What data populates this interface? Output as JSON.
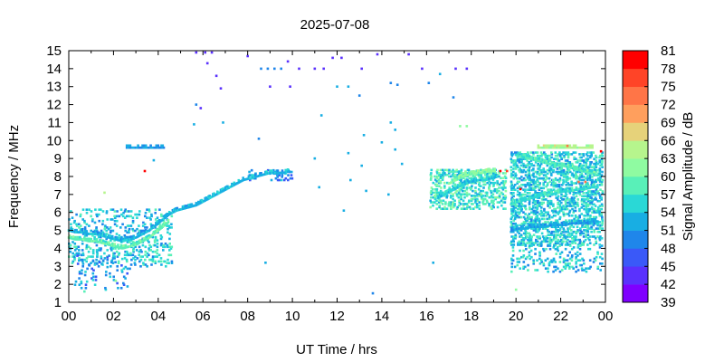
{
  "chart_data": {
    "type": "heatmap",
    "title": "2025-07-08",
    "xlabel": "UT Time / hrs",
    "ylabel": "Frequency / MHz",
    "xlim": [
      0,
      24
    ],
    "ylim": [
      1,
      15
    ],
    "xticks": [
      "00",
      "02",
      "04",
      "06",
      "08",
      "10",
      "12",
      "14",
      "16",
      "18",
      "20",
      "22",
      "00"
    ],
    "yticks": [
      "1",
      "2",
      "3",
      "4",
      "5",
      "6",
      "7",
      "8",
      "9",
      "10",
      "11",
      "12",
      "13",
      "14",
      "15"
    ],
    "grid": false,
    "colorbar": {
      "label": "Signal Amplitude / dB",
      "min": 39,
      "max": 81,
      "ticks": [
        "39",
        "42",
        "45",
        "48",
        "51",
        "54",
        "57",
        "60",
        "63",
        "66",
        "69",
        "72",
        "75",
        "78",
        "81"
      ],
      "colors": [
        "#7f00ff",
        "#5a31fd",
        "#3a59f8",
        "#1f86ea",
        "#18aee3",
        "#2ad8d6",
        "#59f0b8",
        "#8ffba1",
        "#b6f58d",
        "#e6d27a",
        "#ff9f5d",
        "#ff7547",
        "#ff4427",
        "#ff0000"
      ]
    },
    "traces": [
      {
        "x": [
          0.0,
          0.3,
          0.6,
          0.9,
          1.2,
          1.5,
          1.8,
          2.1,
          2.4,
          2.7,
          3.0,
          3.3,
          3.6,
          3.9,
          4.2,
          4.5,
          4.8,
          5.1,
          5.4,
          5.7,
          6.0,
          6.3,
          6.6,
          6.9,
          7.2,
          7.5,
          7.8,
          8.1,
          8.4,
          8.7,
          9.0,
          9.3,
          9.6,
          9.9
        ],
        "y": [
          5.0,
          4.9,
          4.9,
          4.8,
          4.8,
          4.7,
          4.6,
          4.5,
          4.4,
          4.5,
          4.6,
          4.8,
          5.0,
          5.3,
          5.6,
          5.9,
          6.1,
          6.2,
          6.3,
          6.4,
          6.6,
          6.8,
          7.0,
          7.2,
          7.4,
          7.6,
          7.8,
          7.9,
          8.0,
          8.1,
          8.2,
          8.2,
          8.2,
          8.3
        ],
        "amp": 53
      },
      {
        "x": [
          0.0,
          0.3,
          0.6,
          0.9,
          1.2,
          1.5,
          1.8,
          2.1,
          2.4,
          2.7,
          3.0,
          3.3,
          3.6,
          3.9,
          4.2,
          4.5
        ],
        "y": [
          4.6,
          4.5,
          4.5,
          4.4,
          4.4,
          4.3,
          4.2,
          4.1,
          4.0,
          4.1,
          4.2,
          4.4,
          4.6,
          4.9,
          5.2,
          5.5
        ],
        "amp": 59
      },
      {
        "x": [
          2.6,
          2.9,
          3.2,
          3.5,
          4.0,
          4.3
        ],
        "y": [
          9.6,
          9.6,
          9.6,
          9.6,
          9.6,
          9.6
        ],
        "amp": 51
      },
      {
        "x": [
          16.5,
          16.8,
          17.1,
          17.4,
          17.7,
          18.0,
          18.3,
          18.6,
          18.9,
          19.2
        ],
        "y": [
          6.8,
          7.0,
          7.2,
          7.4,
          7.6,
          7.7,
          7.8,
          7.8,
          7.9,
          8.0
        ],
        "amp": 55
      },
      {
        "x": [
          17.0,
          17.3,
          17.6,
          17.9,
          18.2,
          18.5,
          18.8,
          19.1
        ],
        "y": [
          7.6,
          7.8,
          8.0,
          8.1,
          8.2,
          8.2,
          8.3,
          8.3
        ],
        "amp": 61
      },
      {
        "x": [
          19.8,
          20.1,
          20.4,
          20.7,
          21.0,
          21.3,
          21.6,
          21.9,
          22.2,
          22.5,
          22.8,
          23.1,
          23.4,
          23.7
        ],
        "y": [
          6.5,
          6.6,
          6.7,
          6.8,
          6.9,
          7.0,
          7.0,
          7.1,
          7.2,
          7.2,
          7.3,
          7.3,
          7.4,
          7.4
        ],
        "amp": 56
      },
      {
        "x": [
          19.8,
          20.1,
          20.4,
          20.7,
          21.0,
          21.3,
          21.6,
          21.9,
          22.2,
          22.5,
          22.8,
          23.1,
          23.4,
          23.7
        ],
        "y": [
          5.0,
          5.1,
          5.1,
          5.2,
          5.2,
          5.2,
          5.3,
          5.3,
          5.3,
          5.4,
          5.4,
          5.4,
          5.5,
          5.5
        ],
        "amp": 52
      },
      {
        "x": [
          20.0,
          20.3,
          20.6,
          20.9,
          21.2,
          21.5,
          21.8,
          22.1,
          22.4,
          22.7,
          23.0,
          23.3,
          23.6
        ],
        "y": [
          9.2,
          9.1,
          9.0,
          8.9,
          8.8,
          8.7,
          8.6,
          8.6,
          8.5,
          8.4,
          8.3,
          8.2,
          8.1
        ],
        "amp": 58
      },
      {
        "x": [
          21.0,
          21.5,
          22.0,
          22.5,
          23.0,
          23.5
        ],
        "y": [
          9.6,
          9.6,
          9.6,
          9.6,
          9.6,
          9.6
        ],
        "amp": 64
      }
    ],
    "points": [
      {
        "x": 5.7,
        "y": 14.9,
        "amp": 42
      },
      {
        "x": 6.1,
        "y": 14.9,
        "amp": 42
      },
      {
        "x": 6.4,
        "y": 14.9,
        "amp": 42
      },
      {
        "x": 8.0,
        "y": 14.7,
        "amp": 42
      },
      {
        "x": 9.8,
        "y": 14.4,
        "amp": 42
      },
      {
        "x": 10.3,
        "y": 14.0,
        "amp": 42
      },
      {
        "x": 11.0,
        "y": 14.0,
        "amp": 42
      },
      {
        "x": 11.4,
        "y": 14.0,
        "amp": 42
      },
      {
        "x": 11.8,
        "y": 14.6,
        "amp": 42
      },
      {
        "x": 12.2,
        "y": 14.6,
        "amp": 42
      },
      {
        "x": 13.1,
        "y": 14.0,
        "amp": 42
      },
      {
        "x": 13.8,
        "y": 14.8,
        "amp": 42
      },
      {
        "x": 15.2,
        "y": 14.8,
        "amp": 42
      },
      {
        "x": 15.8,
        "y": 14.0,
        "amp": 42
      },
      {
        "x": 17.3,
        "y": 14.0,
        "amp": 42
      },
      {
        "x": 17.8,
        "y": 14.0,
        "amp": 42
      },
      {
        "x": 6.8,
        "y": 12.9,
        "amp": 42
      },
      {
        "x": 9.0,
        "y": 13.0,
        "amp": 42
      },
      {
        "x": 9.9,
        "y": 13.0,
        "amp": 42
      },
      {
        "x": 6.2,
        "y": 14.3,
        "amp": 42
      },
      {
        "x": 6.6,
        "y": 13.6,
        "amp": 42
      },
      {
        "x": 8.6,
        "y": 14.0,
        "amp": 48
      },
      {
        "x": 8.9,
        "y": 14.0,
        "amp": 48
      },
      {
        "x": 9.2,
        "y": 14.0,
        "amp": 48
      },
      {
        "x": 9.5,
        "y": 14.0,
        "amp": 48
      },
      {
        "x": 12.0,
        "y": 13.0,
        "amp": 51
      },
      {
        "x": 12.5,
        "y": 13.0,
        "amp": 51
      },
      {
        "x": 13.0,
        "y": 12.5,
        "amp": 48
      },
      {
        "x": 14.4,
        "y": 13.2,
        "amp": 48
      },
      {
        "x": 14.7,
        "y": 13.1,
        "amp": 48
      },
      {
        "x": 16.1,
        "y": 13.2,
        "amp": 48
      },
      {
        "x": 16.6,
        "y": 13.7,
        "amp": 51
      },
      {
        "x": 17.2,
        "y": 12.4,
        "amp": 48
      },
      {
        "x": 5.7,
        "y": 12.0,
        "amp": 48
      },
      {
        "x": 5.9,
        "y": 11.8,
        "amp": 42
      },
      {
        "x": 5.6,
        "y": 10.9,
        "amp": 51
      },
      {
        "x": 6.9,
        "y": 11.0,
        "amp": 51
      },
      {
        "x": 11.3,
        "y": 11.4,
        "amp": 51
      },
      {
        "x": 14.4,
        "y": 11.0,
        "amp": 51
      },
      {
        "x": 14.6,
        "y": 10.6,
        "amp": 51
      },
      {
        "x": 13.2,
        "y": 10.3,
        "amp": 51
      },
      {
        "x": 14.0,
        "y": 9.9,
        "amp": 51
      },
      {
        "x": 14.6,
        "y": 9.5,
        "amp": 51
      },
      {
        "x": 8.5,
        "y": 10.1,
        "amp": 48
      },
      {
        "x": 11.0,
        "y": 9.0,
        "amp": 51
      },
      {
        "x": 12.5,
        "y": 9.3,
        "amp": 51
      },
      {
        "x": 13.1,
        "y": 8.6,
        "amp": 51
      },
      {
        "x": 14.9,
        "y": 8.7,
        "amp": 51
      },
      {
        "x": 17.5,
        "y": 10.8,
        "amp": 60
      },
      {
        "x": 17.8,
        "y": 10.8,
        "amp": 60
      },
      {
        "x": 3.4,
        "y": 8.3,
        "amp": 78
      },
      {
        "x": 3.8,
        "y": 8.9,
        "amp": 51
      },
      {
        "x": 19.3,
        "y": 8.3,
        "amp": 78
      },
      {
        "x": 19.6,
        "y": 8.3,
        "amp": 75
      },
      {
        "x": 20.2,
        "y": 7.3,
        "amp": 78
      },
      {
        "x": 22.3,
        "y": 9.7,
        "amp": 72
      },
      {
        "x": 22.8,
        "y": 7.7,
        "amp": 72
      },
      {
        "x": 23.1,
        "y": 7.7,
        "amp": 72
      },
      {
        "x": 23.8,
        "y": 9.4,
        "amp": 78
      },
      {
        "x": 20.0,
        "y": 1.7,
        "amp": 60
      },
      {
        "x": 0.7,
        "y": 1.6,
        "amp": 57
      },
      {
        "x": 13.6,
        "y": 1.5,
        "amp": 48
      },
      {
        "x": 8.8,
        "y": 3.2,
        "amp": 51
      },
      {
        "x": 16.3,
        "y": 3.2,
        "amp": 51
      },
      {
        "x": 2.1,
        "y": 2.2,
        "amp": 60
      },
      {
        "x": 1.6,
        "y": 7.1,
        "amp": 63
      },
      {
        "x": 12.3,
        "y": 6.1,
        "amp": 51
      },
      {
        "x": 11.2,
        "y": 7.4,
        "amp": 51
      },
      {
        "x": 12.6,
        "y": 7.8,
        "amp": 51
      },
      {
        "x": 13.3,
        "y": 7.2,
        "amp": 51
      },
      {
        "x": 14.3,
        "y": 7.0,
        "amp": 51
      }
    ],
    "bands": [
      {
        "x0": 0.0,
        "x1": 4.6,
        "y0": 3.0,
        "y1": 6.2,
        "amp": 54,
        "density": 0.25
      },
      {
        "x0": 0.3,
        "x1": 2.8,
        "y0": 1.7,
        "y1": 3.6,
        "amp": 51,
        "density": 0.12
      },
      {
        "x0": 16.2,
        "x1": 19.6,
        "y0": 6.2,
        "y1": 8.4,
        "amp": 57,
        "density": 0.45
      },
      {
        "x0": 19.8,
        "x1": 23.9,
        "y0": 4.2,
        "y1": 9.4,
        "amp": 55,
        "density": 0.5
      },
      {
        "x0": 19.8,
        "x1": 23.9,
        "y0": 2.7,
        "y1": 4.2,
        "amp": 54,
        "density": 0.2
      },
      {
        "x0": 8.0,
        "x1": 10.0,
        "y0": 7.8,
        "y1": 8.4,
        "amp": 50,
        "density": 0.25
      }
    ]
  }
}
